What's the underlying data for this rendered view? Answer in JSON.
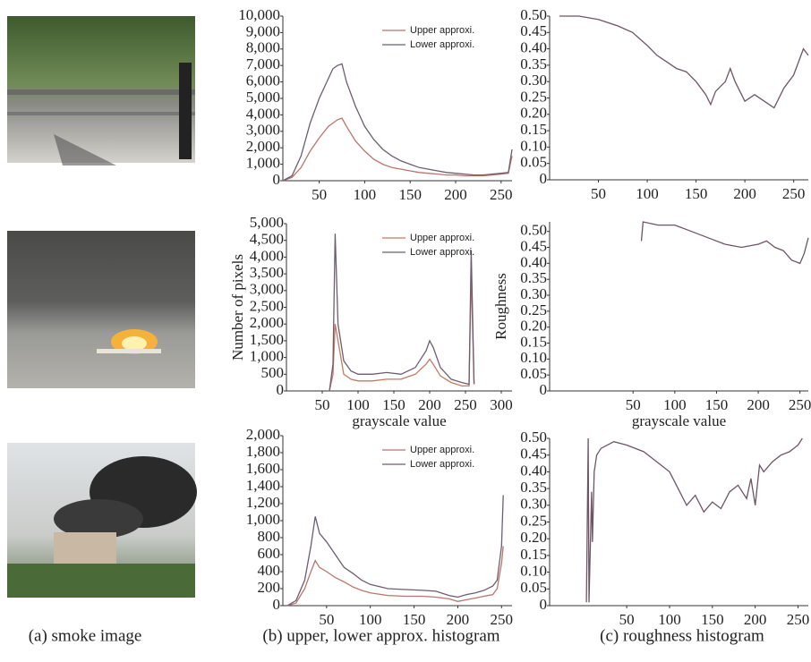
{
  "captions": [
    "(a) smoke image",
    "(b) upper, lower approx. histogram",
    "(c) roughness histogram"
  ],
  "chart_data": [
    {
      "type": "line",
      "legend": "upper right",
      "xlim": [
        10,
        262
      ],
      "ylim": [
        0,
        10000
      ],
      "xticks": [
        50,
        100,
        150,
        200,
        250
      ],
      "yticks": [
        0,
        {
          "value": 1000,
          "label": "1,000"
        },
        {
          "value": 2000,
          "label": "2,000"
        },
        {
          "value": 3000,
          "label": "3,000"
        },
        {
          "value": 4000,
          "label": "4,000"
        },
        {
          "value": 5000,
          "label": "5,000"
        },
        {
          "value": 6000,
          "label": "6,000"
        },
        {
          "value": 7000,
          "label": "7,000"
        },
        {
          "value": 8000,
          "label": "8,000"
        },
        {
          "value": 9000,
          "label": "9,000"
        },
        {
          "value": 10000,
          "label": "10,000"
        }
      ],
      "x": [
        10,
        20,
        30,
        40,
        50,
        60,
        65,
        70,
        75,
        80,
        90,
        100,
        110,
        120,
        130,
        140,
        150,
        160,
        170,
        180,
        190,
        200,
        210,
        220,
        230,
        240,
        250,
        258,
        262
      ],
      "series": [
        {
          "name": "Upper approxi.",
          "color": "#b9756c",
          "values": [
            0,
            200,
            800,
            1800,
            2600,
            3300,
            3500,
            3700,
            3800,
            3300,
            2400,
            1800,
            1300,
            1000,
            800,
            700,
            600,
            500,
            450,
            400,
            350,
            350,
            300,
            300,
            300,
            350,
            400,
            450,
            1500
          ]
        },
        {
          "name": "Lower approxi.",
          "color": "#6e5d70",
          "values": [
            0,
            300,
            1500,
            3500,
            5000,
            6200,
            6800,
            7000,
            7100,
            6000,
            4500,
            3300,
            2500,
            1900,
            1500,
            1200,
            1000,
            800,
            700,
            600,
            500,
            450,
            400,
            350,
            350,
            400,
            450,
            500,
            1900
          ]
        }
      ]
    },
    {
      "type": "line",
      "xlim": [
        0,
        265
      ],
      "ylim": [
        0,
        0.5
      ],
      "xticks": [
        50,
        100,
        150,
        200,
        250
      ],
      "yticks": [
        0,
        0.05,
        {
          "value": 0.1,
          "label": "0.10"
        },
        0.15,
        {
          "value": 0.2,
          "label": "0.20"
        },
        0.25,
        {
          "value": 0.3,
          "label": "0.30"
        },
        0.35,
        {
          "value": 0.4,
          "label": "0.40"
        },
        0.45,
        {
          "value": 0.5,
          "label": "0.50"
        }
      ],
      "x": [
        10,
        30,
        50,
        70,
        85,
        100,
        110,
        120,
        130,
        140,
        150,
        160,
        165,
        170,
        180,
        185,
        190,
        200,
        210,
        220,
        230,
        240,
        250,
        260,
        265
      ],
      "series": [
        {
          "color": "#6e5566",
          "values": [
            0.5,
            0.5,
            0.49,
            0.47,
            0.45,
            0.41,
            0.38,
            0.36,
            0.34,
            0.33,
            0.3,
            0.26,
            0.23,
            0.27,
            0.3,
            0.34,
            0.3,
            0.24,
            0.26,
            0.24,
            0.22,
            0.28,
            0.32,
            0.4,
            0.38
          ]
        }
      ]
    },
    {
      "type": "line",
      "legend": "upper right",
      "xlabel": "grayscale value",
      "ylabel": "Number of pixels",
      "xlim": [
        0,
        315
      ],
      "ylim": [
        0,
        5000
      ],
      "xticks": [
        50,
        100,
        150,
        200,
        250,
        300
      ],
      "yticks": [
        0,
        500,
        {
          "value": 1000,
          "label": "1,000"
        },
        {
          "value": 1500,
          "label": "1,500"
        },
        {
          "value": 2000,
          "label": "2,000"
        },
        {
          "value": 2500,
          "label": "2,500"
        },
        {
          "value": 3000,
          "label": "3,000"
        },
        {
          "value": 3500,
          "label": "3,500"
        },
        {
          "value": 4000,
          "label": "4,000"
        },
        {
          "value": 4500,
          "label": "4,500"
        },
        {
          "value": 5000,
          "label": "5,000"
        }
      ],
      "x": [
        60,
        65,
        68,
        72,
        80,
        90,
        100,
        120,
        140,
        160,
        180,
        195,
        200,
        205,
        215,
        230,
        245,
        255,
        258,
        262
      ],
      "series": [
        {
          "name": "Upper approxi.",
          "color": "#c47a62",
          "values": [
            0,
            500,
            2000,
            1500,
            500,
            350,
            300,
            300,
            350,
            350,
            500,
            800,
            950,
            800,
            450,
            250,
            150,
            150,
            3500,
            200
          ]
        },
        {
          "name": "Lower approxi.",
          "color": "#6e5d70",
          "values": [
            0,
            800,
            4700,
            2000,
            900,
            600,
            500,
            500,
            550,
            500,
            700,
            1200,
            1500,
            1300,
            700,
            350,
            250,
            200,
            4200,
            200
          ]
        }
      ]
    },
    {
      "type": "line",
      "xlabel": "grayscale value",
      "ylabel": "Roughness",
      "xlim": [
        -50,
        260
      ],
      "ylim": [
        0,
        0.53
      ],
      "xticks": [
        50,
        100,
        150,
        200,
        250
      ],
      "yticks": [
        0,
        0.05,
        {
          "value": 0.1,
          "label": "0.10"
        },
        0.15,
        {
          "value": 0.2,
          "label": "0.20"
        },
        0.25,
        {
          "value": 0.3,
          "label": "0.30"
        },
        0.35,
        {
          "value": 0.4,
          "label": "0.40"
        },
        0.45,
        {
          "value": 0.5,
          "label": "0.50"
        }
      ],
      "x": [
        60,
        62,
        80,
        100,
        120,
        140,
        160,
        180,
        200,
        210,
        220,
        230,
        240,
        250,
        255,
        260
      ],
      "series": [
        {
          "color": "#6e5566",
          "values": [
            0.47,
            0.53,
            0.52,
            0.52,
            0.5,
            0.48,
            0.46,
            0.45,
            0.46,
            0.47,
            0.45,
            0.44,
            0.41,
            0.4,
            0.43,
            0.48
          ]
        }
      ]
    },
    {
      "type": "line",
      "legend": "upper right",
      "xlim": [
        0,
        262
      ],
      "ylim": [
        0,
        2000
      ],
      "xticks": [
        50,
        100,
        150,
        200,
        250
      ],
      "yticks": [
        0,
        200,
        400,
        600,
        800,
        {
          "value": 1000,
          "label": "1,000"
        },
        {
          "value": 1200,
          "label": "1,200"
        },
        {
          "value": 1400,
          "label": "1,400"
        },
        {
          "value": 1600,
          "label": "1,600"
        },
        {
          "value": 1800,
          "label": "1,800"
        },
        {
          "value": 2000,
          "label": "2,000"
        }
      ],
      "x": [
        5,
        15,
        25,
        32,
        37,
        42,
        50,
        60,
        70,
        80,
        90,
        100,
        120,
        140,
        160,
        175,
        190,
        200,
        210,
        220,
        230,
        240,
        245,
        250,
        252
      ],
      "series": [
        {
          "name": "Upper approxi.",
          "color": "#b9756c",
          "values": [
            0,
            30,
            200,
            400,
            530,
            450,
            400,
            330,
            280,
            220,
            180,
            150,
            120,
            110,
            110,
            100,
            80,
            50,
            70,
            90,
            110,
            130,
            200,
            500,
            700
          ]
        },
        {
          "name": "Lower approxi.",
          "color": "#6e5d70",
          "values": [
            0,
            60,
            300,
            700,
            1050,
            850,
            750,
            600,
            450,
            380,
            300,
            250,
            200,
            190,
            180,
            170,
            120,
            100,
            130,
            150,
            180,
            230,
            300,
            700,
            1300
          ]
        }
      ]
    },
    {
      "type": "line",
      "xlim": [
        -40,
        262
      ],
      "ylim": [
        0,
        0.5
      ],
      "xticks": [
        50,
        100,
        150,
        200,
        250
      ],
      "yticks": [
        0,
        0.05,
        {
          "value": 0.1,
          "label": "0.10"
        },
        0.15,
        {
          "value": 0.2,
          "label": "0.20"
        },
        0.25,
        {
          "value": 0.3,
          "label": "0.30"
        },
        0.35,
        {
          "value": 0.4,
          "label": "0.40"
        },
        0.45,
        {
          "value": 0.5,
          "label": "0.50"
        }
      ],
      "x": [
        3,
        5,
        6,
        9,
        10,
        12,
        15,
        20,
        35,
        50,
        70,
        90,
        100,
        110,
        120,
        130,
        140,
        150,
        160,
        170,
        180,
        190,
        195,
        200,
        205,
        210,
        220,
        230,
        240,
        250,
        255
      ],
      "series": [
        {
          "color": "#6e5566",
          "values": [
            0.01,
            0.5,
            0.01,
            0.34,
            0.19,
            0.4,
            0.45,
            0.47,
            0.49,
            0.48,
            0.46,
            0.42,
            0.4,
            0.35,
            0.3,
            0.33,
            0.28,
            0.31,
            0.29,
            0.34,
            0.36,
            0.32,
            0.38,
            0.3,
            0.42,
            0.4,
            0.43,
            0.45,
            0.46,
            0.48,
            0.5
          ]
        }
      ]
    }
  ]
}
